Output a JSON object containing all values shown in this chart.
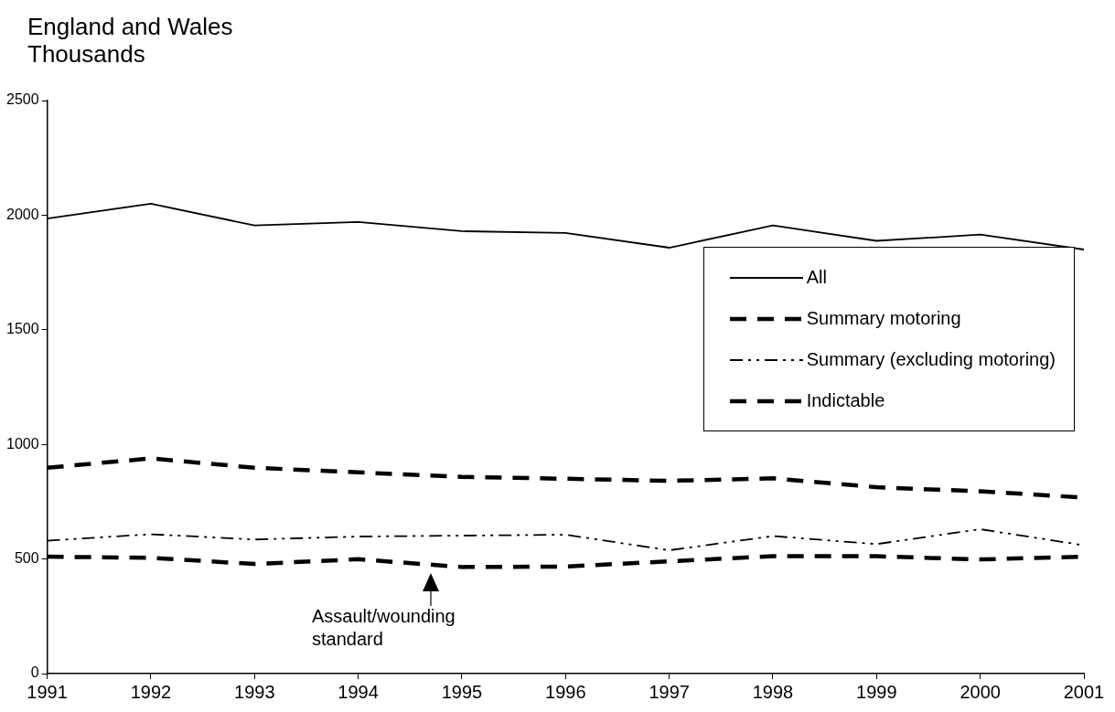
{
  "chart_data": {
    "type": "line",
    "title": "England and Wales",
    "ylabel": "Thousands",
    "x": [
      1991,
      1992,
      1993,
      1994,
      1995,
      1996,
      1997,
      1998,
      1999,
      2000,
      2001
    ],
    "xlim": [
      1991,
      2001
    ],
    "xticks": [
      1991,
      1992,
      1993,
      1994,
      1995,
      1996,
      1997,
      1998,
      1999,
      2000,
      2001
    ],
    "ylim": [
      0,
      2500
    ],
    "yticks": [
      0,
      500,
      1000,
      1500,
      2000,
      2500
    ],
    "grid": false,
    "legend": "right",
    "marker": "none",
    "series": [
      {
        "name": "All",
        "color": "#000000",
        "line_style": "solid",
        "values": [
          1985,
          2050,
          1955,
          1970,
          1930,
          1922,
          1858,
          1955,
          1888,
          1915,
          1850
        ]
      },
      {
        "name": "Summary motoring",
        "color": "#000000",
        "line_style": "dashed",
        "values": [
          898,
          939,
          898,
          878,
          858,
          850,
          841,
          852,
          813,
          795,
          768
        ]
      },
      {
        "name": "Summary (excluding motoring)",
        "color": "#000000",
        "line_style": "dotted",
        "values": [
          580,
          608,
          585,
          598,
          602,
          606,
          538,
          600,
          565,
          630,
          560
        ]
      },
      {
        "name": "Indictable",
        "color": "#000000",
        "line_style": "dashed",
        "values": [
          510,
          505,
          478,
          499,
          465,
          467,
          490,
          512,
          512,
          498,
          510
        ]
      }
    ],
    "annotations": [
      {
        "text": "Assault/wounding standard",
        "x": 1994.7,
        "y": 470
      }
    ]
  }
}
